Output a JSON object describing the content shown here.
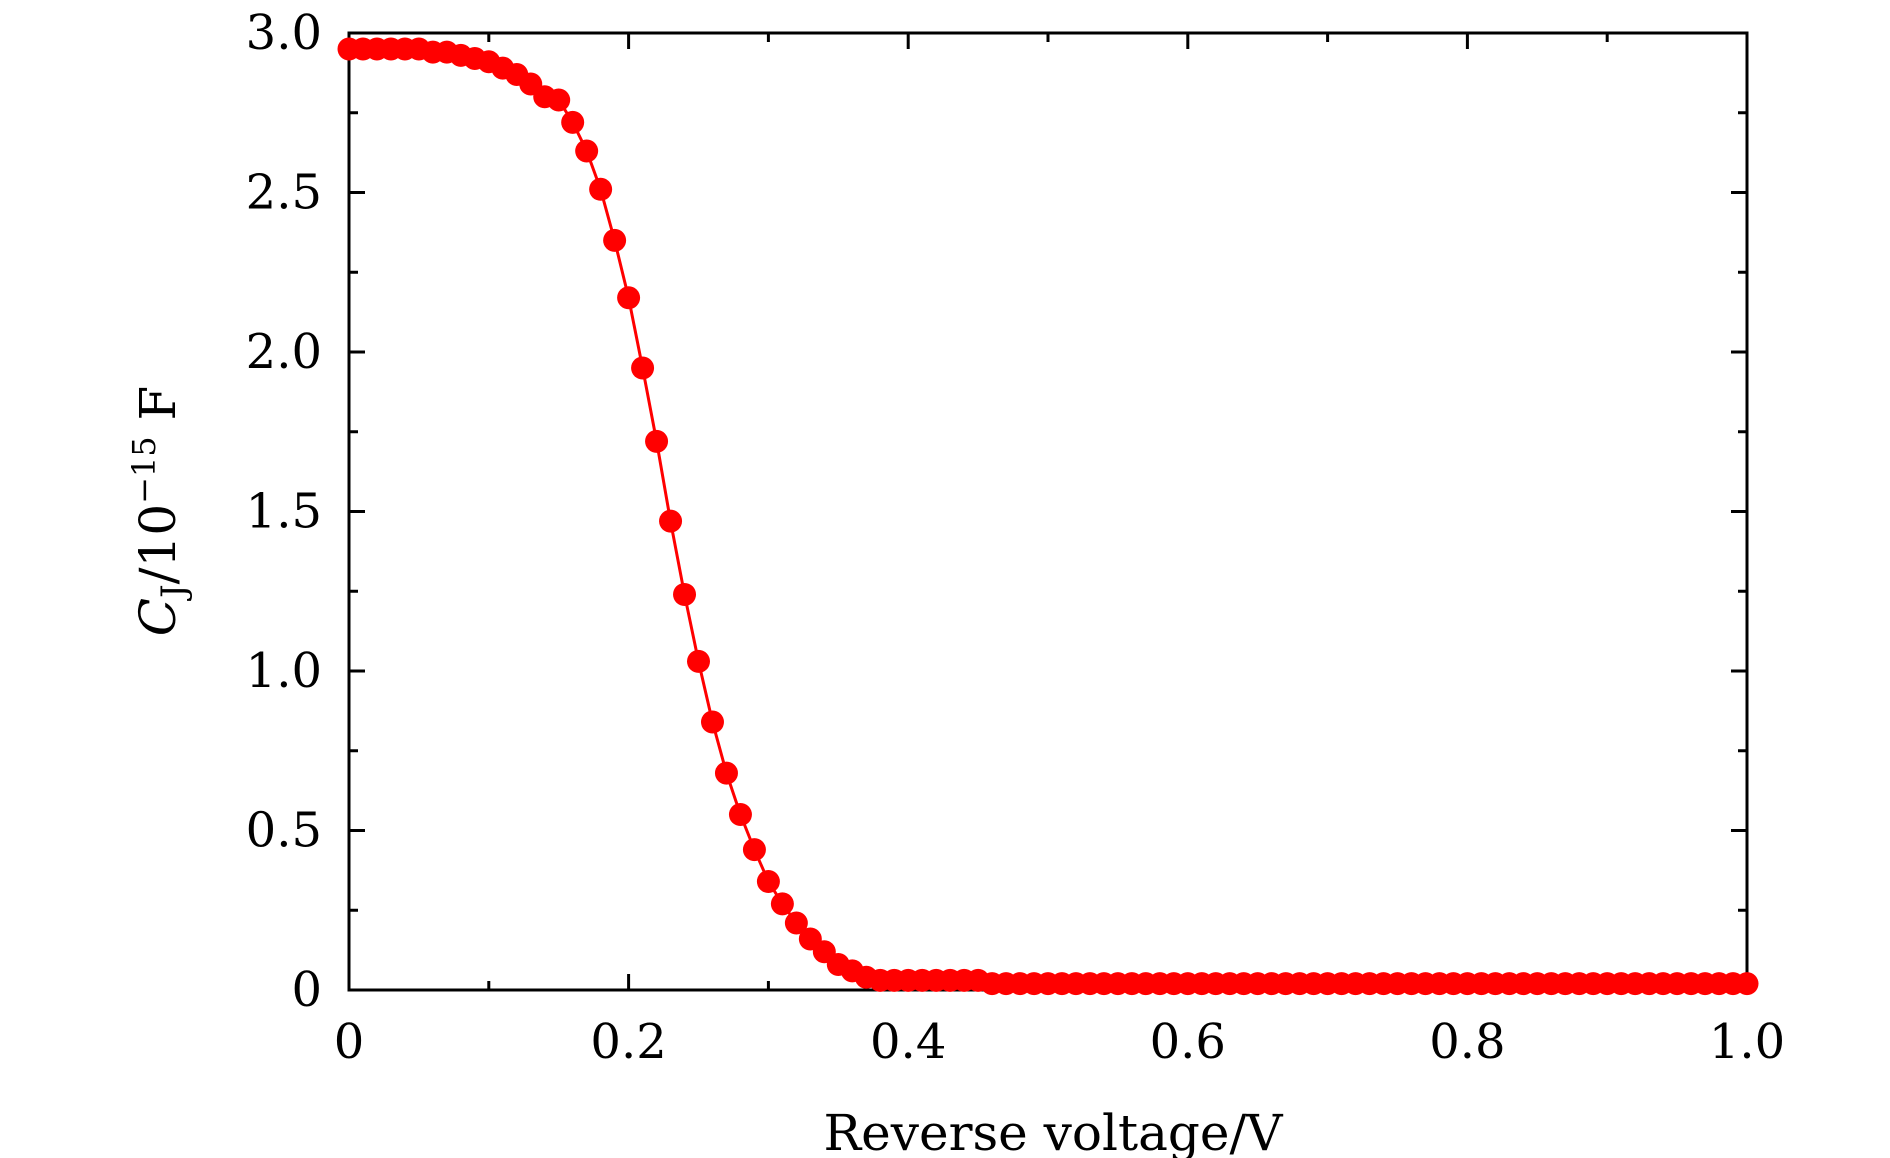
{
  "chart_data": {
    "type": "line",
    "title": "",
    "xlabel": "Reverse voltage/V",
    "ylabel": {
      "symbol": "C",
      "subscript": "J",
      "unit_prefix": "/10",
      "exponent": "−15",
      "unit": " F"
    },
    "xlim": [
      0,
      1.0
    ],
    "ylim": [
      0,
      3.0
    ],
    "x_ticks": [
      "0",
      "0.2",
      "0.4",
      "0.6",
      "0.8",
      "1.0"
    ],
    "y_ticks": [
      "0",
      "0.5",
      "1.0",
      "1.5",
      "2.0",
      "2.5",
      "3.0"
    ],
    "grid": false,
    "legend": "none",
    "series": [
      {
        "color": "#ff0000",
        "marker": "circle",
        "x": [
          0.0,
          0.01,
          0.02,
          0.03,
          0.04,
          0.05,
          0.06,
          0.07,
          0.08,
          0.09,
          0.1,
          0.11,
          0.12,
          0.13,
          0.14,
          0.15,
          0.16,
          0.17,
          0.18,
          0.19,
          0.2,
          0.21,
          0.22,
          0.23,
          0.24,
          0.25,
          0.26,
          0.27,
          0.28,
          0.29,
          0.3,
          0.31,
          0.32,
          0.33,
          0.34,
          0.35,
          0.36,
          0.37,
          0.38,
          0.39,
          0.4,
          0.41,
          0.42,
          0.43,
          0.44,
          0.45,
          0.46,
          0.47,
          0.48,
          0.49,
          0.5,
          0.51,
          0.52,
          0.53,
          0.54,
          0.55,
          0.56,
          0.57,
          0.58,
          0.59,
          0.6,
          0.61,
          0.62,
          0.63,
          0.64,
          0.65,
          0.66,
          0.67,
          0.68,
          0.69,
          0.7,
          0.71,
          0.72,
          0.73,
          0.74,
          0.75,
          0.76,
          0.77,
          0.78,
          0.79,
          0.8,
          0.81,
          0.82,
          0.83,
          0.84,
          0.85,
          0.86,
          0.87,
          0.88,
          0.89,
          0.9,
          0.91,
          0.92,
          0.93,
          0.94,
          0.95,
          0.96,
          0.97,
          0.98,
          0.99,
          1.0
        ],
        "y": [
          2.95,
          2.95,
          2.95,
          2.95,
          2.95,
          2.95,
          2.94,
          2.94,
          2.93,
          2.92,
          2.91,
          2.89,
          2.87,
          2.84,
          2.8,
          2.79,
          2.72,
          2.63,
          2.51,
          2.35,
          2.17,
          1.95,
          1.72,
          1.47,
          1.24,
          1.03,
          0.84,
          0.68,
          0.55,
          0.44,
          0.34,
          0.27,
          0.21,
          0.16,
          0.12,
          0.08,
          0.06,
          0.04,
          0.03,
          0.03,
          0.03,
          0.03,
          0.03,
          0.03,
          0.03,
          0.03,
          0.02,
          0.02,
          0.02,
          0.02,
          0.02,
          0.02,
          0.02,
          0.02,
          0.02,
          0.02,
          0.02,
          0.02,
          0.02,
          0.02,
          0.02,
          0.02,
          0.02,
          0.02,
          0.02,
          0.02,
          0.02,
          0.02,
          0.02,
          0.02,
          0.02,
          0.02,
          0.02,
          0.02,
          0.02,
          0.02,
          0.02,
          0.02,
          0.02,
          0.02,
          0.02,
          0.02,
          0.02,
          0.02,
          0.02,
          0.02,
          0.02,
          0.02,
          0.02,
          0.02,
          0.02,
          0.02,
          0.02,
          0.02,
          0.02,
          0.02,
          0.02,
          0.02,
          0.02,
          0.02,
          0.02
        ]
      }
    ]
  }
}
